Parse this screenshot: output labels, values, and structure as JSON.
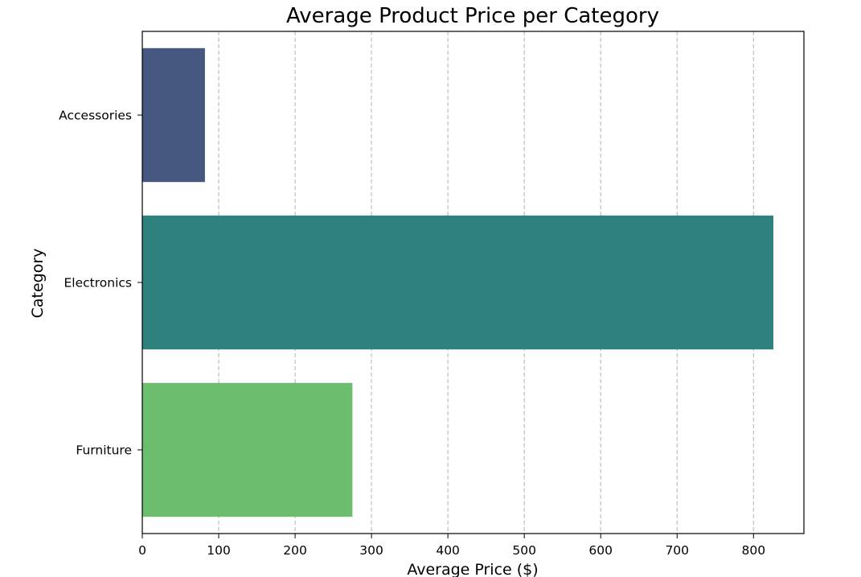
{
  "chart_data": {
    "type": "bar",
    "orientation": "horizontal",
    "title": "Average Product Price per Category",
    "xlabel": "Average Price ($)",
    "ylabel": "Category",
    "categories": [
      "Accessories",
      "Electronics",
      "Furniture"
    ],
    "values": [
      82,
      826,
      275
    ],
    "colors": [
      "#46587f",
      "#2e817d",
      "#6cbd6e"
    ],
    "xlim": [
      0,
      866
    ],
    "xticks": [
      0,
      100,
      200,
      300,
      400,
      500,
      600,
      700,
      800
    ],
    "grid": {
      "x": true,
      "y": false,
      "style": "dashed"
    },
    "legend": "none"
  }
}
